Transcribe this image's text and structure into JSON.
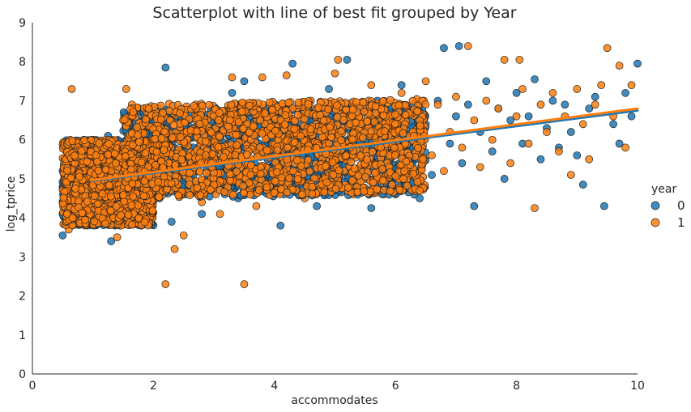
{
  "chart_data": {
    "type": "scatter",
    "title": "Scatterplot with line of best fit grouped by Year",
    "xlabel": "accommodates",
    "ylabel": "log_tprice",
    "xlim": [
      0,
      10
    ],
    "ylim": [
      0,
      9
    ],
    "x_ticks": [
      "0",
      "2",
      "4",
      "6",
      "8",
      "10"
    ],
    "y_ticks": [
      "0",
      "1",
      "2",
      "3",
      "4",
      "5",
      "6",
      "7",
      "8",
      "9"
    ],
    "grid": false,
    "legend": {
      "title": "year",
      "placement": "right",
      "entries": [
        "0",
        "1"
      ]
    },
    "series": [
      {
        "name": "0",
        "color": "#1f77b4",
        "points": [
          [
            0.5,
            3.55
          ],
          [
            0.5,
            4.4
          ],
          [
            0.5,
            5.2
          ],
          [
            0.55,
            5.8
          ],
          [
            0.6,
            4.8
          ],
          [
            0.65,
            3.9
          ],
          [
            0.7,
            5.5
          ],
          [
            0.8,
            4.2
          ],
          [
            0.9,
            5.9
          ],
          [
            1.0,
            4.6
          ],
          [
            1.1,
            5.3
          ],
          [
            1.2,
            3.9
          ],
          [
            1.25,
            6.1
          ],
          [
            1.3,
            3.4
          ],
          [
            1.4,
            4.9
          ],
          [
            1.5,
            5.6
          ],
          [
            1.6,
            4.3
          ],
          [
            1.7,
            6.3
          ],
          [
            1.8,
            3.8
          ],
          [
            1.9,
            5.1
          ],
          [
            2.0,
            6.6
          ],
          [
            2.1,
            4.5
          ],
          [
            2.2,
            7.85
          ],
          [
            2.25,
            5.8
          ],
          [
            2.3,
            3.9
          ],
          [
            2.4,
            6.2
          ],
          [
            2.5,
            4.9
          ],
          [
            2.6,
            5.5
          ],
          [
            2.7,
            6.7
          ],
          [
            2.8,
            4.1
          ],
          [
            2.9,
            5.9
          ],
          [
            3.0,
            4.7
          ],
          [
            3.1,
            6.4
          ],
          [
            3.2,
            5.2
          ],
          [
            3.3,
            7.2
          ],
          [
            3.4,
            4.5
          ],
          [
            3.5,
            7.5
          ],
          [
            3.6,
            5.8
          ],
          [
            3.7,
            4.8
          ],
          [
            3.8,
            6.5
          ],
          [
            3.9,
            5.1
          ],
          [
            4.0,
            6.9
          ],
          [
            4.1,
            3.8
          ],
          [
            4.2,
            5.6
          ],
          [
            4.3,
            7.95
          ],
          [
            4.4,
            6.1
          ],
          [
            4.5,
            5.0
          ],
          [
            4.6,
            6.7
          ],
          [
            4.7,
            4.3
          ],
          [
            4.8,
            5.9
          ],
          [
            4.9,
            7.3
          ],
          [
            5.0,
            5.4
          ],
          [
            5.1,
            6.3
          ],
          [
            5.2,
            8.05
          ],
          [
            5.3,
            4.8
          ],
          [
            5.4,
            6.6
          ],
          [
            5.5,
            5.7
          ],
          [
            5.6,
            4.25
          ],
          [
            5.7,
            7.0
          ],
          [
            5.8,
            5.3
          ],
          [
            5.9,
            6.2
          ],
          [
            6.0,
            4.6
          ],
          [
            6.1,
            7.4
          ],
          [
            6.2,
            5.8
          ],
          [
            6.3,
            6.9
          ],
          [
            6.4,
            4.5
          ],
          [
            6.5,
            6.4
          ],
          [
            6.6,
            5.1
          ],
          [
            6.7,
            7.0
          ],
          [
            6.8,
            8.35
          ],
          [
            6.9,
            5.9
          ],
          [
            7.0,
            6.6
          ],
          [
            7.05,
            8.4
          ],
          [
            7.1,
            5.4
          ],
          [
            7.2,
            6.9
          ],
          [
            7.3,
            4.3
          ],
          [
            7.4,
            6.2
          ],
          [
            7.5,
            7.5
          ],
          [
            7.6,
            5.7
          ],
          [
            7.7,
            6.8
          ],
          [
            7.8,
            5.0
          ],
          [
            7.9,
            6.5
          ],
          [
            8.0,
            7.2
          ],
          [
            8.1,
            5.9
          ],
          [
            8.2,
            6.6
          ],
          [
            8.3,
            7.55
          ],
          [
            8.4,
            5.5
          ],
          [
            8.5,
            6.3
          ],
          [
            8.6,
            7.0
          ],
          [
            8.7,
            5.8
          ],
          [
            8.8,
            6.9
          ],
          [
            8.9,
            6.2
          ],
          [
            9.0,
            5.6
          ],
          [
            9.1,
            4.85
          ],
          [
            9.2,
            6.8
          ],
          [
            9.3,
            7.1
          ],
          [
            9.45,
            4.3
          ],
          [
            9.6,
            6.4
          ],
          [
            9.7,
            5.9
          ],
          [
            9.8,
            7.2
          ],
          [
            9.9,
            6.6
          ],
          [
            10.0,
            7.95
          ]
        ]
      },
      {
        "name": "1",
        "color": "#ff7f0e",
        "points": [
          [
            0.5,
            4.1
          ],
          [
            0.55,
            5.0
          ],
          [
            0.6,
            3.7
          ],
          [
            0.65,
            7.3
          ],
          [
            0.7,
            4.6
          ],
          [
            0.8,
            5.4
          ],
          [
            0.9,
            4.0
          ],
          [
            1.0,
            5.9
          ],
          [
            1.1,
            4.4
          ],
          [
            1.2,
            5.6
          ],
          [
            1.3,
            4.8
          ],
          [
            1.4,
            3.5
          ],
          [
            1.5,
            6.5
          ],
          [
            1.55,
            7.3
          ],
          [
            1.6,
            5.2
          ],
          [
            1.7,
            4.5
          ],
          [
            1.8,
            6.0
          ],
          [
            1.9,
            3.9
          ],
          [
            2.0,
            6.8
          ],
          [
            2.1,
            5.3
          ],
          [
            2.2,
            2.3
          ],
          [
            2.3,
            6.1
          ],
          [
            2.35,
            3.2
          ],
          [
            2.4,
            4.7
          ],
          [
            2.5,
            3.55
          ],
          [
            2.6,
            5.8
          ],
          [
            2.7,
            6.9
          ],
          [
            2.8,
            4.4
          ],
          [
            2.9,
            5.5
          ],
          [
            3.0,
            6.4
          ],
          [
            3.1,
            4.1
          ],
          [
            3.2,
            5.9
          ],
          [
            3.3,
            7.6
          ],
          [
            3.4,
            4.9
          ],
          [
            3.5,
            2.3
          ],
          [
            3.55,
            6.2
          ],
          [
            3.6,
            5.4
          ],
          [
            3.7,
            4.3
          ],
          [
            3.8,
            7.6
          ],
          [
            3.9,
            5.7
          ],
          [
            4.0,
            6.6
          ],
          [
            4.1,
            4.7
          ],
          [
            4.2,
            7.65
          ],
          [
            4.3,
            5.2
          ],
          [
            4.4,
            6.3
          ],
          [
            4.5,
            4.5
          ],
          [
            4.6,
            7.0
          ],
          [
            4.7,
            5.8
          ],
          [
            4.8,
            6.5
          ],
          [
            4.9,
            4.9
          ],
          [
            5.0,
            7.7
          ],
          [
            5.05,
            8.05
          ],
          [
            5.1,
            5.5
          ],
          [
            5.2,
            6.8
          ],
          [
            5.3,
            4.6
          ],
          [
            5.4,
            6.1
          ],
          [
            5.5,
            5.0
          ],
          [
            5.6,
            7.4
          ],
          [
            5.7,
            5.9
          ],
          [
            5.8,
            4.6
          ],
          [
            5.9,
            6.7
          ],
          [
            6.0,
            5.3
          ],
          [
            6.1,
            7.2
          ],
          [
            6.2,
            5.8
          ],
          [
            6.3,
            6.4
          ],
          [
            6.4,
            4.9
          ],
          [
            6.5,
            7.5
          ],
          [
            6.6,
            5.6
          ],
          [
            6.7,
            6.9
          ],
          [
            6.8,
            5.2
          ],
          [
            6.9,
            6.2
          ],
          [
            7.0,
            7.1
          ],
          [
            7.1,
            5.8
          ],
          [
            7.2,
            8.4
          ],
          [
            7.3,
            6.5
          ],
          [
            7.4,
            5.3
          ],
          [
            7.5,
            7.0
          ],
          [
            7.6,
            6.0
          ],
          [
            7.7,
            6.8
          ],
          [
            7.8,
            8.05
          ],
          [
            7.9,
            5.4
          ],
          [
            8.0,
            6.6
          ],
          [
            8.05,
            8.05
          ],
          [
            8.1,
            7.3
          ],
          [
            8.2,
            5.9
          ],
          [
            8.3,
            4.25
          ],
          [
            8.4,
            6.9
          ],
          [
            8.5,
            6.2
          ],
          [
            8.6,
            7.2
          ],
          [
            8.7,
            5.7
          ],
          [
            8.8,
            6.6
          ],
          [
            8.9,
            5.1
          ],
          [
            9.0,
            7.3
          ],
          [
            9.1,
            6.4
          ],
          [
            9.2,
            5.5
          ],
          [
            9.3,
            6.9
          ],
          [
            9.4,
            7.4
          ],
          [
            9.5,
            8.35
          ],
          [
            9.6,
            6.6
          ],
          [
            9.7,
            7.9
          ],
          [
            9.8,
            5.8
          ],
          [
            9.9,
            7.4
          ]
        ]
      }
    ],
    "fit_lines": [
      {
        "name": "0",
        "color": "#1f77b4",
        "start": [
          1,
          4.95
        ],
        "end": [
          10,
          6.75
        ]
      },
      {
        "name": "1",
        "color": "#ff7f0e",
        "start": [
          1,
          4.97
        ],
        "end": [
          10,
          6.8
        ]
      }
    ],
    "dense_cluster_hint": [
      {
        "x_range": [
          0.5,
          2.0
        ],
        "y_range": [
          3.8,
          6.0
        ]
      },
      {
        "x_range": [
          1.5,
          6.5
        ],
        "y_range": [
          4.5,
          6.8
        ]
      }
    ]
  }
}
